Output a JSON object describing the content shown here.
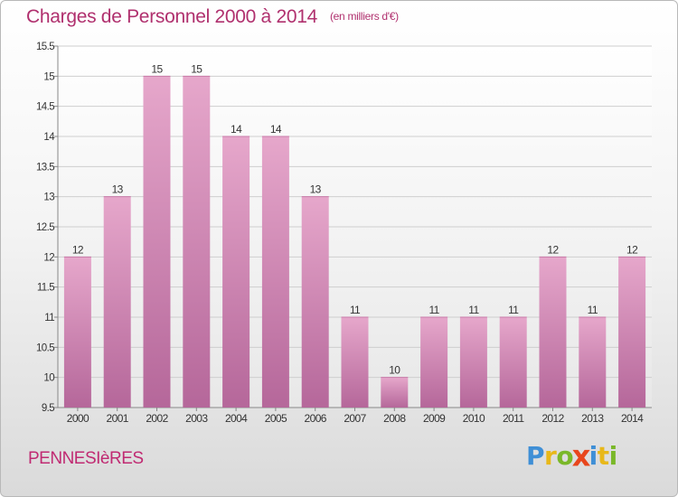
{
  "header": {
    "title": "Charges de Personnel 2000 à 2014",
    "subtitle": "(en milliers d'€)"
  },
  "commune": "PENNESIèRES",
  "logo": {
    "letters": [
      "P",
      "r",
      "o",
      "x",
      "i",
      "t",
      "i"
    ],
    "colors": [
      "#3f8fd6",
      "#e8b81a",
      "#7ab829",
      "#e8461c",
      "#3f8fd6",
      "#e8b81a",
      "#7ab829"
    ]
  },
  "chart_data": {
    "type": "bar",
    "categories": [
      "2000",
      "2001",
      "2002",
      "2003",
      "2004",
      "2005",
      "2006",
      "2007",
      "2008",
      "2009",
      "2010",
      "2011",
      "2012",
      "2013",
      "2014"
    ],
    "values": [
      12,
      13,
      15,
      15,
      14,
      14,
      13,
      11,
      10,
      11,
      11,
      11,
      12,
      11,
      12
    ],
    "data_labels": [
      "12",
      "13",
      "15",
      "15",
      "14",
      "14",
      "13",
      "11",
      "10",
      "11",
      "11",
      "11",
      "12",
      "11",
      "12"
    ],
    "ylim": [
      9.5,
      15.5
    ],
    "yticks": [
      9.5,
      10,
      10.5,
      11,
      11.5,
      12,
      12.5,
      13,
      13.5,
      14,
      14.5,
      15,
      15.5
    ],
    "ytick_labels": [
      "9.5",
      "10",
      "10.5",
      "11",
      "11.5",
      "12",
      "12.5",
      "13",
      "13.5",
      "14",
      "14.5",
      "15",
      "15.5"
    ],
    "grid": true,
    "bar_color": "#d98bb8"
  }
}
